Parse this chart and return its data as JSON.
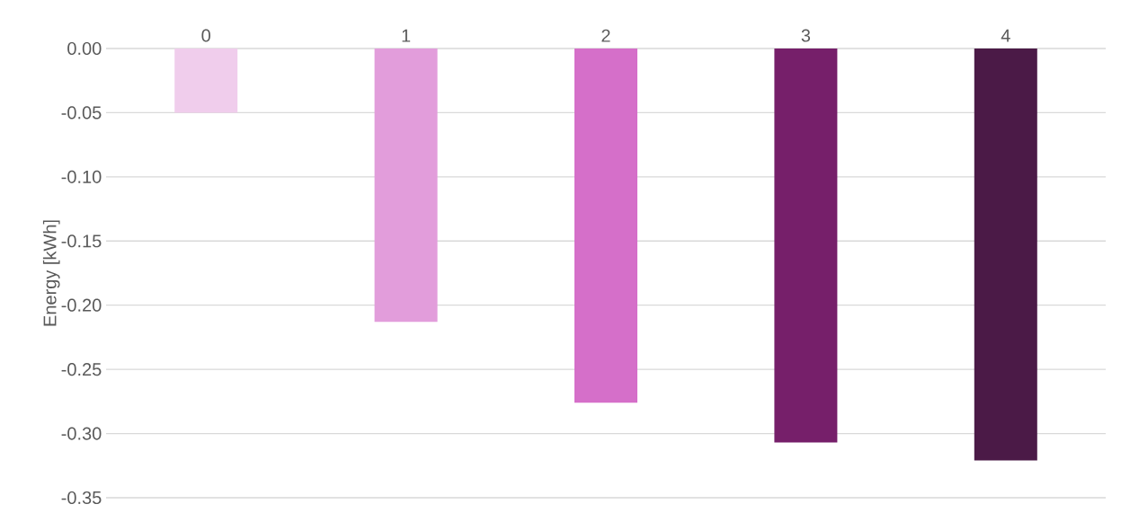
{
  "chart_data": {
    "type": "bar",
    "ylabel": "Energy [kWh]",
    "categories": [
      "0",
      "1",
      "2",
      "3",
      "4"
    ],
    "values": [
      -0.05,
      -0.213,
      -0.276,
      -0.307,
      -0.321
    ],
    "colors": [
      "#f0cdec",
      "#e29ddb",
      "#d56fc9",
      "#761f6a",
      "#4b1a47"
    ],
    "ylim": [
      -0.35,
      0
    ],
    "yticks": [
      {
        "value": 0,
        "label": "0.00"
      },
      {
        "value": -0.05,
        "label": "-0.05"
      },
      {
        "value": -0.1,
        "label": "-0.10"
      },
      {
        "value": -0.15,
        "label": "-0.15"
      },
      {
        "value": -0.2,
        "label": "-0.20"
      },
      {
        "value": -0.25,
        "label": "-0.25"
      },
      {
        "value": -0.3,
        "label": "-0.30"
      },
      {
        "value": -0.35,
        "label": "-0.35"
      }
    ],
    "grid": "y"
  }
}
